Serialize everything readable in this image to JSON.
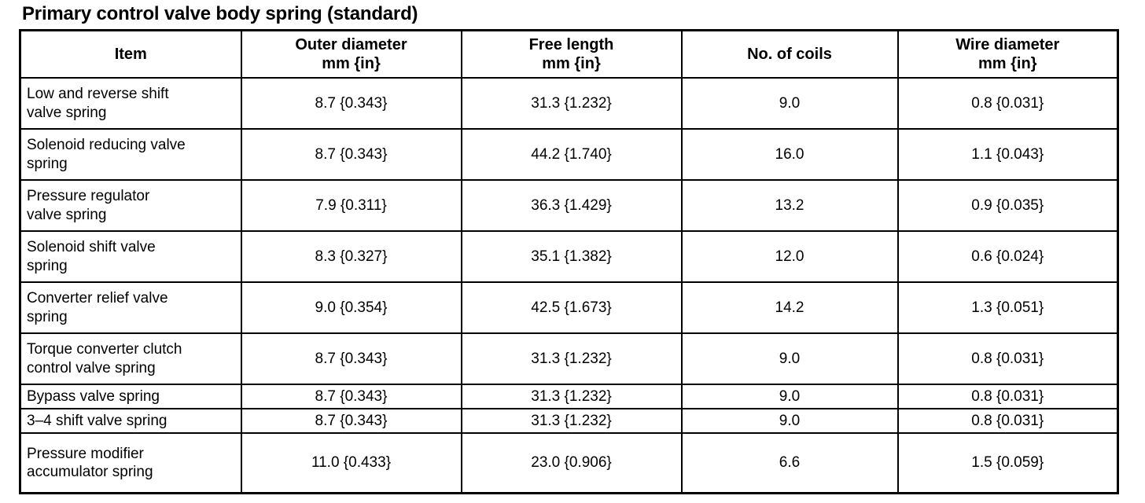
{
  "page": {
    "title": "Primary control valve body spring (standard)"
  },
  "table": {
    "headers": [
      {
        "label": "Item"
      },
      {
        "label": "Outer diameter\nmm {in}"
      },
      {
        "label": "Free length\nmm {in}"
      },
      {
        "label": "No. of coils"
      },
      {
        "label": "Wire diameter\nmm {in}"
      }
    ],
    "rows": [
      {
        "item": "Low and reverse shift\nvalve spring",
        "outer_diameter": "8.7 {0.343}",
        "free_length": "31.3 {1.232}",
        "no_of_coils": "9.0",
        "wire_diameter": "0.8 {0.031}"
      },
      {
        "item": "Solenoid reducing valve\nspring",
        "outer_diameter": "8.7 {0.343}",
        "free_length": "44.2 {1.740}",
        "no_of_coils": "16.0",
        "wire_diameter": "1.1 {0.043}"
      },
      {
        "item": "Pressure regulator\nvalve spring",
        "outer_diameter": "7.9 {0.311}",
        "free_length": "36.3 {1.429}",
        "no_of_coils": "13.2",
        "wire_diameter": "0.9 {0.035}"
      },
      {
        "item": "Solenoid shift valve\nspring",
        "outer_diameter": "8.3 {0.327}",
        "free_length": "35.1 {1.382}",
        "no_of_coils": "12.0",
        "wire_diameter": "0.6 {0.024}"
      },
      {
        "item": "Converter relief valve\nspring",
        "outer_diameter": "9.0 {0.354}",
        "free_length": "42.5 {1.673}",
        "no_of_coils": "14.2",
        "wire_diameter": "1.3 {0.051}"
      },
      {
        "item": "Torque converter clutch\ncontrol valve spring",
        "outer_diameter": "8.7 {0.343}",
        "free_length": "31.3 {1.232}",
        "no_of_coils": "9.0",
        "wire_diameter": "0.8 {0.031}"
      },
      {
        "item": "Bypass valve spring",
        "outer_diameter": "8.7 {0.343}",
        "free_length": "31.3 {1.232}",
        "no_of_coils": "9.0",
        "wire_diameter": "0.8 {0.031}"
      },
      {
        "item": "3–4 shift valve spring",
        "outer_diameter": "8.7 {0.343}",
        "free_length": "31.3 {1.232}",
        "no_of_coils": "9.0",
        "wire_diameter": "0.8 {0.031}"
      },
      {
        "item": "Pressure modifier\naccumulator spring",
        "outer_diameter": "11.0 {0.433}",
        "free_length": "23.0 {0.906}",
        "no_of_coils": "6.6",
        "wire_diameter": "1.5 {0.059}"
      }
    ]
  }
}
